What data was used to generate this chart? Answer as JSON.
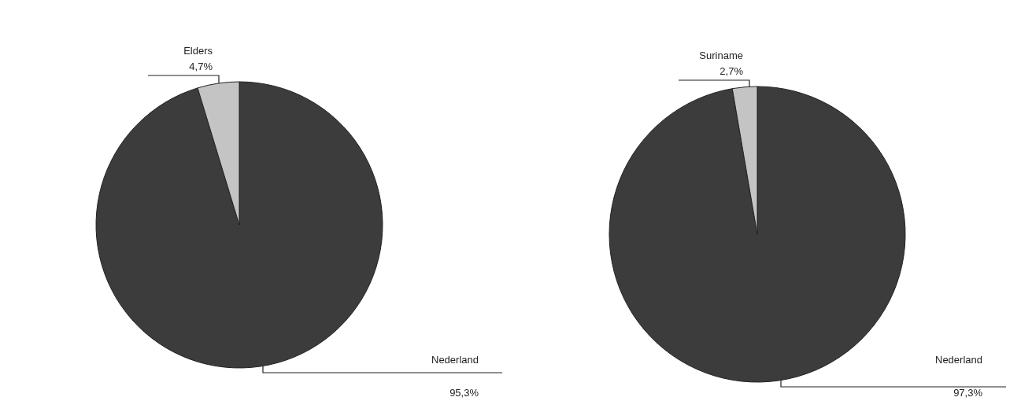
{
  "chart_data": [
    {
      "type": "pie",
      "categories": [
        "Nederland",
        "Elders"
      ],
      "values": [
        95.3,
        4.7
      ],
      "colors": [
        "#3c3c3c",
        "#c4c4c4"
      ],
      "value_labels": [
        "95,3%",
        "4,7%"
      ],
      "legend": false
    },
    {
      "type": "pie",
      "categories": [
        "Nederland",
        "Suriname"
      ],
      "values": [
        97.3,
        2.7
      ],
      "colors": [
        "#3c3c3c",
        "#c4c4c4"
      ],
      "value_labels": [
        "97,3%",
        "2,7%"
      ],
      "legend": false
    }
  ]
}
